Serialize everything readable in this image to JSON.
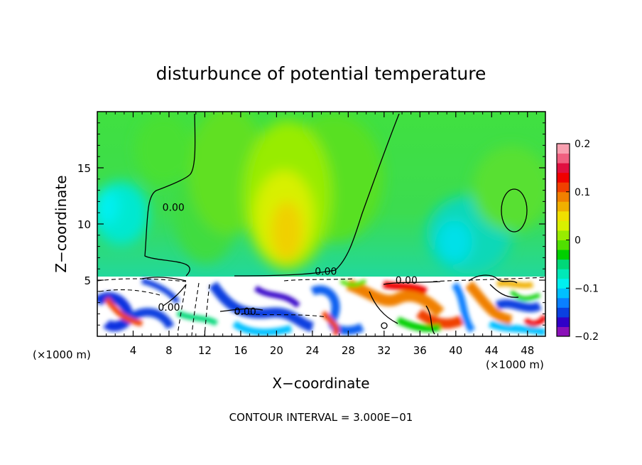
{
  "chart_data": {
    "type": "heatmap",
    "title": "disturbunce of potential temperature",
    "xlabel": "X−coordinate",
    "ylabel": "Z−coordinate",
    "x_unit_left": "(×1000 m)",
    "x_unit_right": "(×1000 m)",
    "xlim": [
      0,
      50
    ],
    "ylim": [
      0,
      20
    ],
    "x_ticks": [
      4,
      8,
      12,
      16,
      20,
      24,
      28,
      32,
      36,
      40,
      44,
      48
    ],
    "x_tick_labels": [
      "4",
      "8",
      "12",
      "16",
      "20",
      "24",
      "28",
      "32",
      "36",
      "40",
      "44",
      "48"
    ],
    "y_ticks": [
      5,
      10,
      15
    ],
    "y_tick_labels": [
      "5",
      "10",
      "15"
    ],
    "colorbar": {
      "range": [
        -0.2,
        0.2
      ],
      "ticks": [
        0.2,
        0.1,
        0,
        -0.1,
        -0.2
      ],
      "tick_labels": [
        "0.2",
        "0.1",
        "0",
        "−0.1",
        "−0.2"
      ],
      "colors": [
        "#8a10b8",
        "#3000c8",
        "#0a40e0",
        "#0a80ff",
        "#00c0ff",
        "#00f0f0",
        "#00e8b8",
        "#00d878",
        "#00d000",
        "#50e000",
        "#98ec00",
        "#d8f000",
        "#f0e000",
        "#f0b000",
        "#f08000",
        "#f04000",
        "#f00000",
        "#e01040",
        "#f06080",
        "#f8a0b0"
      ]
    },
    "contour_labels": [
      {
        "text": "0.00",
        "x": 8.5,
        "z": 11.5
      },
      {
        "text": "0.00",
        "x": 25.5,
        "z": 5.8
      },
      {
        "text": "0.00",
        "x": 34.5,
        "z": 5.0
      },
      {
        "text": "0.00",
        "x": 16.5,
        "z": 2.2
      },
      {
        "text": "0.00",
        "x": 8.0,
        "z": 2.6
      }
    ],
    "footer": "CONTOUR INTERVAL = 3.000E−01"
  }
}
